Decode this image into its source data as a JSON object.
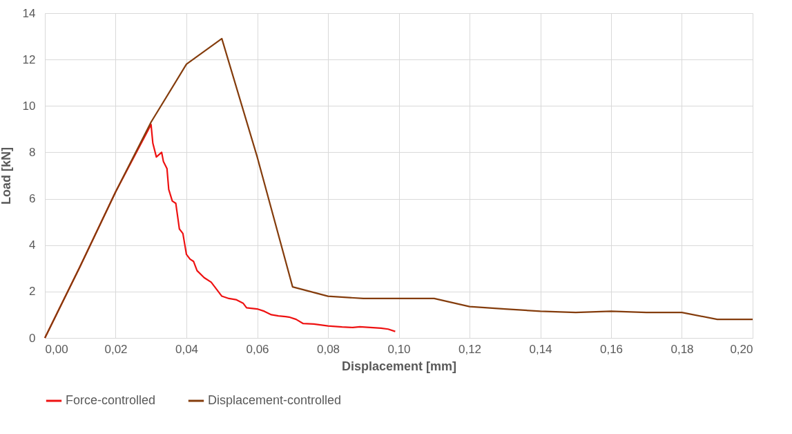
{
  "chart_data": {
    "type": "line",
    "xlabel": "Displacement [mm]",
    "ylabel": "Load [kN]",
    "xlim": [
      0,
      0.2
    ],
    "ylim": [
      0,
      14
    ],
    "xticks": [
      {
        "value": 0,
        "label": "0,00"
      },
      {
        "value": 0.02,
        "label": "0,02"
      },
      {
        "value": 0.04,
        "label": "0,04"
      },
      {
        "value": 0.06,
        "label": "0,06"
      },
      {
        "value": 0.08,
        "label": "0,08"
      },
      {
        "value": 0.1,
        "label": "0,10"
      },
      {
        "value": 0.12,
        "label": "0,12"
      },
      {
        "value": 0.14,
        "label": "0,14"
      },
      {
        "value": 0.16,
        "label": "0,16"
      },
      {
        "value": 0.18,
        "label": "0,18"
      },
      {
        "value": 0.2,
        "label": "0,20"
      }
    ],
    "yticks": [
      0,
      2,
      4,
      6,
      8,
      10,
      12,
      14
    ],
    "grid": true,
    "legend": "bottom",
    "line_style": "solid",
    "marker": "none",
    "series": [
      {
        "name": "Force-controlled",
        "color": "#ee1111",
        "x": [
          0,
          0.01,
          0.02,
          0.03,
          0.0305,
          0.0315,
          0.033,
          0.0335,
          0.0345,
          0.035,
          0.036,
          0.037,
          0.038,
          0.039,
          0.04,
          0.041,
          0.042,
          0.043,
          0.045,
          0.047,
          0.048,
          0.05,
          0.052,
          0.054,
          0.056,
          0.057,
          0.06,
          0.062,
          0.064,
          0.066,
          0.068,
          0.069,
          0.071,
          0.073,
          0.076,
          0.08,
          0.084,
          0.087,
          0.089,
          0.092,
          0.095,
          0.097,
          0.099
        ],
        "values": [
          0,
          3.1,
          6.3,
          9.2,
          8.4,
          7.8,
          8.0,
          7.6,
          7.3,
          6.4,
          5.9,
          5.8,
          4.7,
          4.5,
          3.6,
          3.4,
          3.3,
          2.9,
          2.6,
          2.4,
          2.2,
          1.8,
          1.7,
          1.65,
          1.5,
          1.3,
          1.25,
          1.15,
          1.0,
          0.95,
          0.92,
          0.9,
          0.8,
          0.62,
          0.6,
          0.52,
          0.47,
          0.45,
          0.48,
          0.45,
          0.42,
          0.38,
          0.28
        ]
      },
      {
        "name": "Displacement-controlled",
        "color": "#843c0c",
        "x": [
          0,
          0.01,
          0.02,
          0.03,
          0.04,
          0.05,
          0.06,
          0.07,
          0.08,
          0.09,
          0.1,
          0.11,
          0.12,
          0.13,
          0.14,
          0.15,
          0.16,
          0.17,
          0.18,
          0.19,
          0.2
        ],
        "values": [
          0,
          3.1,
          6.3,
          9.3,
          11.8,
          12.9,
          7.8,
          2.2,
          1.8,
          1.7,
          1.7,
          1.7,
          1.35,
          1.25,
          1.15,
          1.1,
          1.15,
          1.1,
          1.1,
          0.8,
          0.8
        ]
      }
    ]
  }
}
